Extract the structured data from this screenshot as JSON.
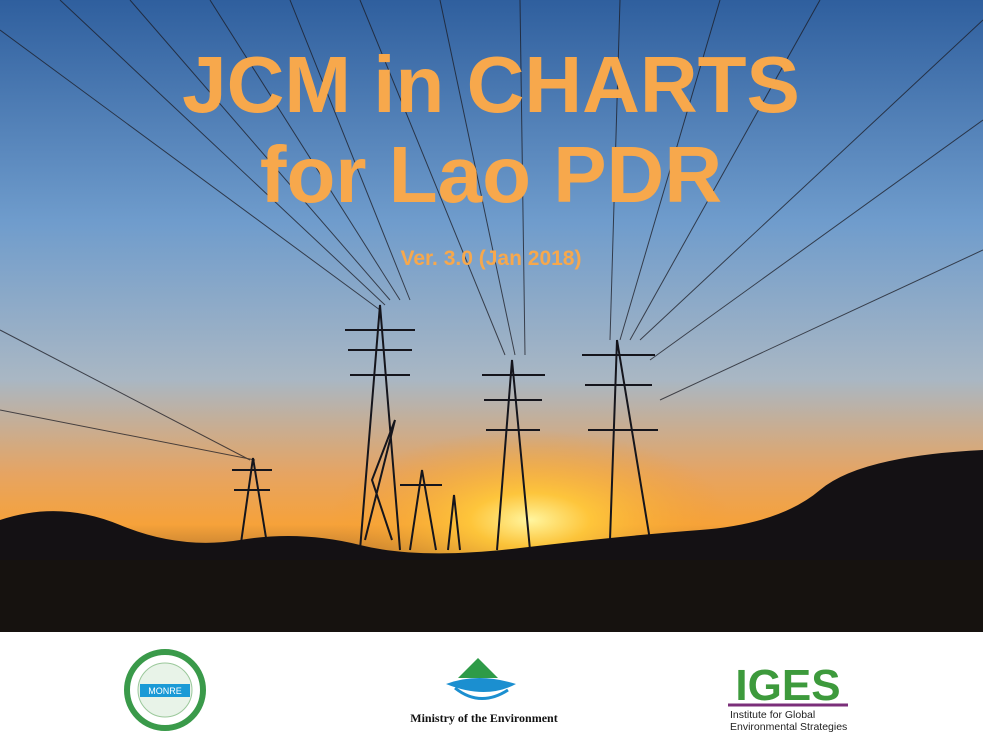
{
  "title": {
    "line1": "JCM in CHARTS",
    "line2": "for Lao PDR"
  },
  "subtitle": "Ver. 3.0 (Jan 2018)",
  "logos": {
    "monre": {
      "label": "MONRE"
    },
    "moe": {
      "label": "Ministry of the Environment"
    },
    "iges": {
      "label": "IGES",
      "line1": "Institute for Global",
      "line2": "Environmental Strategies"
    }
  }
}
